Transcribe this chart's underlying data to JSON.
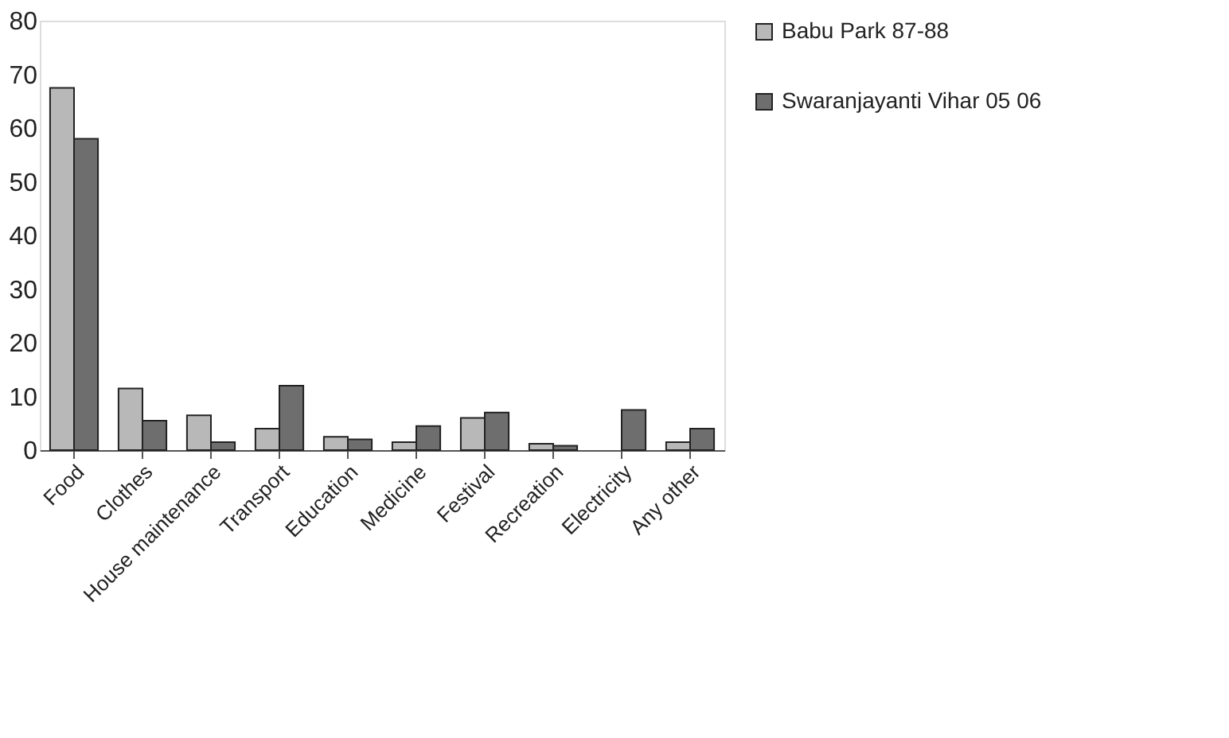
{
  "chart_data": {
    "type": "bar",
    "categories": [
      "Food",
      "Clothes",
      "House maintenance",
      "Transport",
      "Education",
      "Medicine",
      "Festival",
      "Recreation",
      "Electricity",
      "Any other"
    ],
    "series": [
      {
        "name": "Babu Park 87-88",
        "color": "#b8b8b8",
        "values": [
          67.5,
          11.5,
          6.5,
          4,
          2.5,
          1.5,
          6,
          1.2,
          null,
          1.5
        ]
      },
      {
        "name": "Swaranjayanti Vihar 05 06",
        "color": "#6e6e6e",
        "values": [
          58,
          5.5,
          1.5,
          12,
          2,
          4.5,
          7,
          0.8,
          7.5,
          4
        ]
      }
    ],
    "ylim": [
      0,
      80
    ],
    "yticks": [
      0,
      10,
      20,
      30,
      40,
      50,
      60,
      70,
      80
    ],
    "grid": false,
    "legend": "right"
  }
}
